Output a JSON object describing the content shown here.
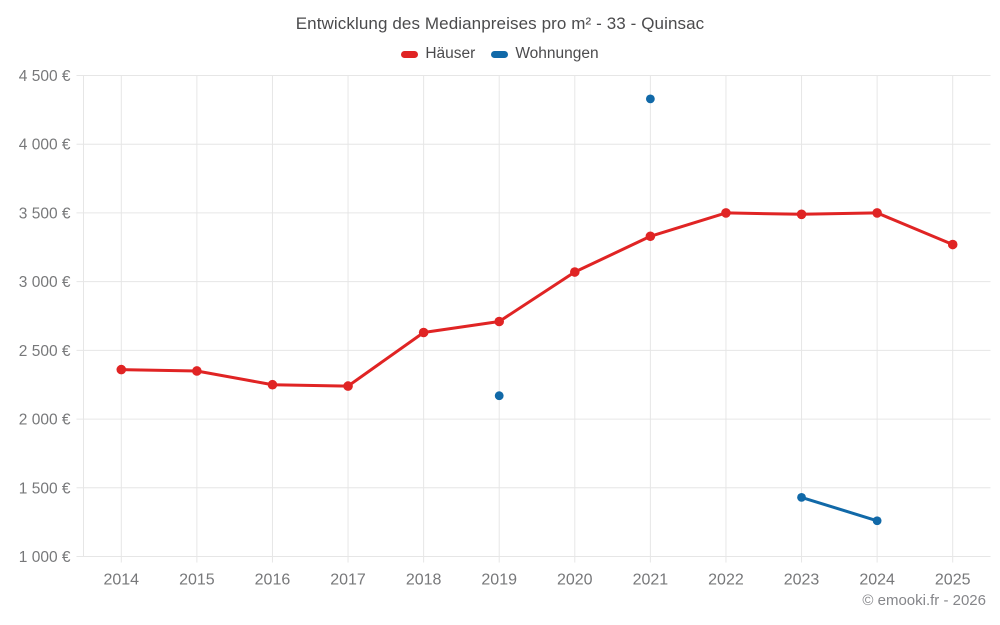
{
  "page": {
    "watermark": "© emooki.fr - 2026"
  },
  "chart_data": {
    "type": "line",
    "title": "Entwicklung des Medianpreises pro m² - 33 - Quinsac",
    "categories": [
      "2014",
      "2015",
      "2016",
      "2017",
      "2018",
      "2019",
      "2020",
      "2021",
      "2022",
      "2023",
      "2024",
      "2025"
    ],
    "series": [
      {
        "name": "Häuser",
        "color": "#e02424",
        "values": [
          2360,
          2350,
          2250,
          2240,
          2630,
          2710,
          3070,
          3330,
          3500,
          3490,
          3500,
          3270
        ]
      },
      {
        "name": "Wohnungen",
        "color": "#1169a8",
        "values": [
          null,
          null,
          null,
          null,
          null,
          2170,
          null,
          4330,
          null,
          1430,
          1260,
          null
        ]
      }
    ],
    "xlabel": "",
    "ylabel": "",
    "ylim": [
      1000,
      4500
    ],
    "yticks": [
      1000,
      1500,
      2000,
      2500,
      3000,
      3500,
      4000,
      4500
    ],
    "ytick_labels": [
      "1 000 €",
      "1 500 €",
      "2 000 €",
      "2 500 €",
      "3 000 €",
      "3 500 €",
      "4 000 €",
      "4 500 €"
    ],
    "grid": true,
    "legend_position": "top"
  }
}
